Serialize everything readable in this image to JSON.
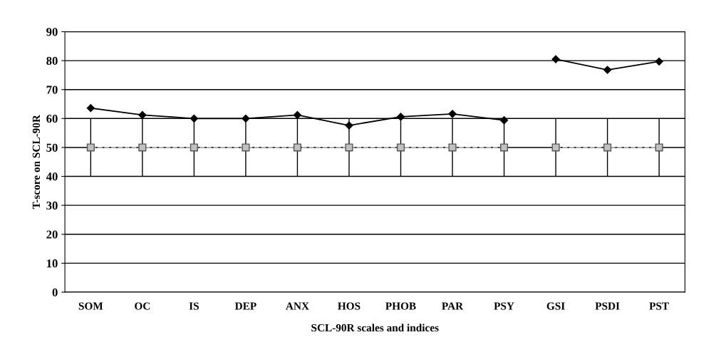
{
  "chart_data": {
    "type": "line",
    "xlabel": "SCL-90R scales and indices",
    "ylabel": "T-score on SCL-90R",
    "categories": [
      "SOM",
      "OC",
      "IS",
      "DEP",
      "ANX",
      "HOS",
      "PHOB",
      "PAR",
      "PSY",
      "GSI",
      "PSDI",
      "PST"
    ],
    "series": [
      {
        "color": "#000000",
        "marker": "diamond",
        "line_style": "solid",
        "values": [
          63.6,
          61.2,
          60,
          60,
          61.2,
          57.6,
          60.6,
          61.6,
          59.4,
          null,
          null,
          null
        ]
      },
      {
        "color": "#000000",
        "marker": "diamond",
        "line_style": "solid",
        "values": [
          null,
          null,
          null,
          null,
          null,
          null,
          null,
          null,
          null,
          80.5,
          76.8,
          79.7
        ]
      },
      {
        "color": "#c0c0c0",
        "marker": "square",
        "line_style": "dashed",
        "values": [
          50,
          50,
          50,
          50,
          50,
          50,
          50,
          50,
          50,
          null,
          null,
          null
        ],
        "errors": [
          10,
          10,
          10,
          10,
          10,
          10,
          10,
          10,
          10,
          null,
          null,
          null
        ]
      },
      {
        "color": "#c0c0c0",
        "marker": "square",
        "line_style": "dashed",
        "values": [
          null,
          null,
          null,
          null,
          null,
          null,
          null,
          null,
          null,
          50,
          50,
          50
        ],
        "errors": [
          null,
          null,
          null,
          null,
          null,
          null,
          null,
          null,
          null,
          10,
          10,
          10
        ]
      }
    ],
    "ylim": [
      0,
      90
    ],
    "yticks": [
      0,
      10,
      20,
      30,
      40,
      50,
      60,
      70,
      80,
      90
    ],
    "grid": "y",
    "legend": false
  }
}
